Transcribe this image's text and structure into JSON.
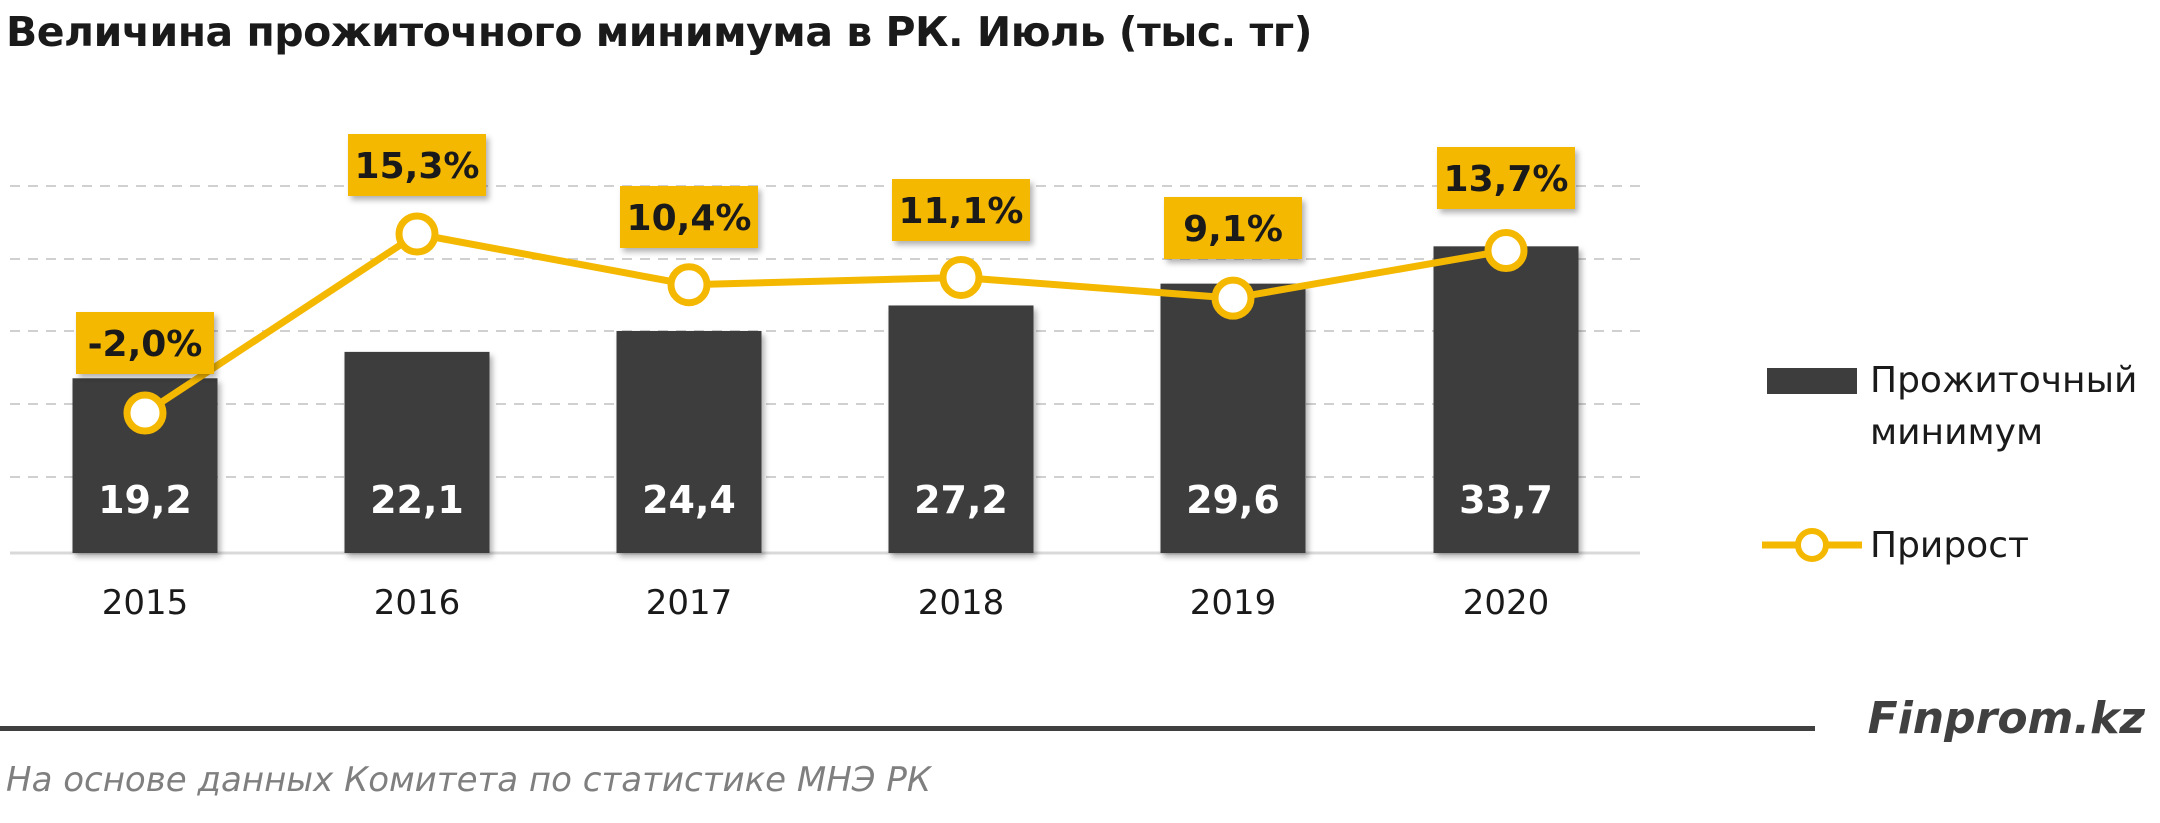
{
  "title": "Величина прожиточного минимума в РК. Июль (тыс. тг)",
  "legend": {
    "bar_label_line1": "Прожиточный",
    "bar_label_line2": "минимум",
    "line_label": "Прирост"
  },
  "brand": "Finprom.kz",
  "source": "На основе данных  Комитета по статистике МНЭ РК",
  "colors": {
    "bar": "#3d3d3d",
    "line": "#f5b800",
    "label_box": "#f5b800",
    "grid": "#d0d0d0"
  },
  "chart_data": {
    "type": "bar",
    "categories": [
      "2015",
      "2016",
      "2017",
      "2018",
      "2019",
      "2020"
    ],
    "series": [
      {
        "name": "Прожиточный минимум",
        "type": "bar",
        "values": [
          19.2,
          22.1,
          24.4,
          27.2,
          29.6,
          33.7
        ],
        "labels": [
          "19,2",
          "22,1",
          "24,4",
          "27,2",
          "29,6",
          "33,7"
        ]
      },
      {
        "name": "Прирост",
        "type": "line",
        "values": [
          -2.0,
          15.3,
          10.4,
          11.1,
          9.1,
          13.7
        ],
        "labels": [
          "-2,0%",
          "15,3%",
          "10,4%",
          "11,1%",
          "9,1%",
          "13,7%"
        ]
      }
    ],
    "ylim_bars": [
      0,
      40
    ],
    "grid": true,
    "legend_position": "right"
  }
}
